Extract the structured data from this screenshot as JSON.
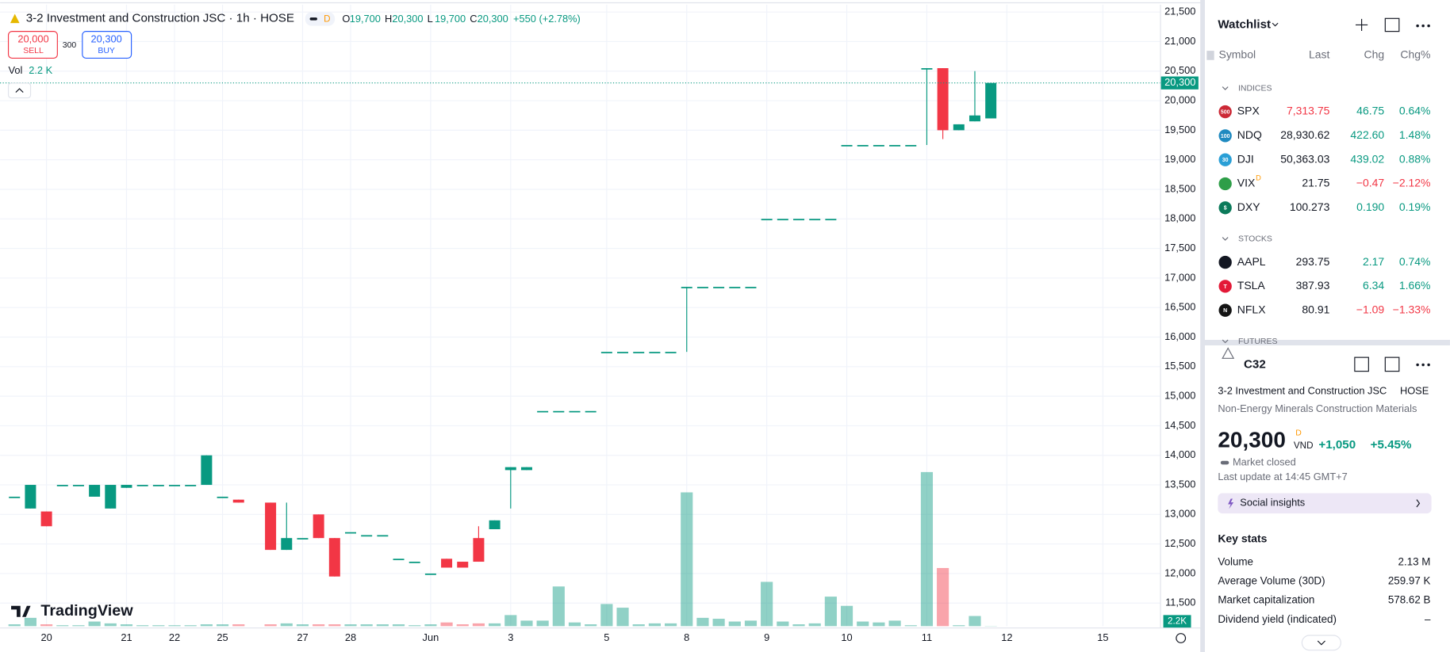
{
  "header": {
    "title": "3-2 Investment and Construction JSC · 1h · HOSE",
    "badge": "D",
    "ohlc": [
      {
        "key": "O",
        "value": "19,700"
      },
      {
        "key": "H",
        "value": "20,300"
      },
      {
        "key": "L",
        "value": "19,700"
      },
      {
        "key": "C",
        "value": "20,300"
      }
    ],
    "change": "+550 (+2.78%)",
    "sell_price": "20,000",
    "sell": "SELL",
    "spread": "300",
    "buy_price": "20,300",
    "buy": "BUY",
    "vol": "Vol",
    "vol_value": "2.2 K"
  },
  "chart_data": {
    "type": "candlestick",
    "up_color": "#089981",
    "down_color": "#f23645",
    "x": [
      0,
      1,
      2,
      3,
      4,
      5,
      6,
      7,
      8,
      9,
      10,
      11,
      12,
      13,
      14,
      16,
      17,
      18,
      19,
      20,
      21,
      22,
      23,
      24,
      25,
      26,
      27,
      28,
      29,
      30,
      31,
      32,
      33,
      34,
      35,
      36,
      37,
      38,
      39,
      40,
      41,
      42,
      43,
      44,
      45,
      46,
      47,
      48,
      49,
      50,
      51,
      52,
      53,
      54,
      55,
      56,
      57,
      58,
      59,
      60,
      61
    ],
    "open": [
      13300,
      13100,
      13050,
      13500,
      13500,
      13300,
      13100,
      13450,
      13500,
      13500,
      13500,
      13500,
      13500,
      13300,
      13250,
      13200,
      12400,
      12600,
      13000,
      12600,
      12700,
      12650,
      12650,
      12250,
      12200,
      12000,
      12250,
      12200,
      12600,
      12750,
      13750,
      13750,
      14750,
      14750,
      14750,
      14750,
      15750,
      15750,
      15750,
      15750,
      15750,
      16850,
      16850,
      16850,
      16850,
      16850,
      18000,
      18000,
      18000,
      18000,
      18000,
      19250,
      19250,
      19250,
      19250,
      19250,
      20550,
      20550,
      19500,
      19650,
      19700
    ],
    "high": [
      13300,
      13500,
      13050,
      13500,
      13500,
      13500,
      13500,
      13500,
      13500,
      13500,
      13500,
      13500,
      14000,
      13300,
      13250,
      13200,
      13200,
      12600,
      13000,
      12600,
      12700,
      12650,
      12650,
      12250,
      12200,
      12000,
      12250,
      12200,
      12800,
      12900,
      13800,
      13800,
      14750,
      14750,
      14750,
      14750,
      15750,
      15750,
      15750,
      15750,
      15750,
      16850,
      16850,
      16850,
      16850,
      16850,
      18000,
      18000,
      18000,
      18000,
      18000,
      19250,
      19250,
      19250,
      19250,
      19250,
      20550,
      20550,
      19600,
      20500,
      20300
    ],
    "low": [
      13300,
      13100,
      12800,
      13500,
      13500,
      13300,
      13100,
      13450,
      13500,
      13500,
      13500,
      13500,
      13500,
      13300,
      13200,
      12400,
      12400,
      12600,
      12600,
      11950,
      12700,
      12650,
      12650,
      12250,
      12200,
      12000,
      12100,
      12100,
      12200,
      12750,
      13100,
      13750,
      14750,
      14750,
      14750,
      14750,
      15750,
      15750,
      15750,
      15750,
      15750,
      15750,
      16850,
      16850,
      16850,
      16850,
      18000,
      18000,
      18000,
      18000,
      18000,
      19250,
      19250,
      19250,
      19250,
      19250,
      19250,
      19350,
      19500,
      19650,
      19700
    ],
    "close": [
      13300,
      13500,
      12800,
      13500,
      13500,
      13500,
      13500,
      13500,
      13500,
      13500,
      13500,
      13500,
      14000,
      13300,
      13200,
      12400,
      12600,
      12600,
      12600,
      11950,
      12700,
      12650,
      12650,
      12250,
      12200,
      12000,
      12100,
      12100,
      12200,
      12900,
      13800,
      13800,
      14750,
      14750,
      14750,
      14750,
      15750,
      15750,
      15750,
      15750,
      15750,
      16850,
      16850,
      16850,
      16850,
      16850,
      18000,
      18000,
      18000,
      18000,
      18000,
      19250,
      19250,
      19250,
      19250,
      19250,
      20550,
      19500,
      19600,
      19750,
      20300
    ],
    "volume": [
      18000,
      81000,
      18000,
      9000,
      9000,
      45000,
      27000,
      18000,
      9000,
      9000,
      9000,
      9000,
      18000,
      18000,
      18000,
      18000,
      27000,
      18000,
      18000,
      18000,
      18000,
      18000,
      18000,
      18000,
      9000,
      18000,
      36000,
      18000,
      27000,
      27000,
      108000,
      54000,
      54000,
      387000,
      36000,
      18000,
      216000,
      180000,
      18000,
      27000,
      27000,
      1305000,
      81000,
      72000,
      45000,
      54000,
      432000,
      45000,
      18000,
      27000,
      288000,
      198000,
      45000,
      36000,
      54000,
      9000,
      1503000,
      567000,
      9000,
      99000,
      2200
    ],
    "xlim": [
      -0.9,
      71.6
    ],
    "xticks": [
      {
        "value": 2,
        "label": "20"
      },
      {
        "value": 7,
        "label": "21"
      },
      {
        "value": 10,
        "label": "22"
      },
      {
        "value": 13,
        "label": "25"
      },
      {
        "value": 18,
        "label": "27"
      },
      {
        "value": 21,
        "label": "28"
      },
      {
        "value": 26,
        "label": "Jun"
      },
      {
        "value": 31,
        "label": "3"
      },
      {
        "value": 37,
        "label": "5"
      },
      {
        "value": 42,
        "label": "8"
      },
      {
        "value": 47,
        "label": "9"
      },
      {
        "value": 52,
        "label": "10"
      },
      {
        "value": 57,
        "label": "11"
      },
      {
        "value": 62,
        "label": "12"
      },
      {
        "value": 68,
        "label": "15"
      }
    ],
    "ylim": [
      11110,
      21625
    ],
    "yticks": [
      {
        "value": 11500,
        "label": "11,500"
      },
      {
        "value": 12000,
        "label": "12,000"
      },
      {
        "value": 12500,
        "label": "12,500"
      },
      {
        "value": 13000,
        "label": "13,000"
      },
      {
        "value": 13500,
        "label": "13,500"
      },
      {
        "value": 14000,
        "label": "14,000"
      },
      {
        "value": 14500,
        "label": "14,500"
      },
      {
        "value": 15000,
        "label": "15,000"
      },
      {
        "value": 15500,
        "label": "15,500"
      },
      {
        "value": 16000,
        "label": "16,000"
      },
      {
        "value": 16500,
        "label": "16,500"
      },
      {
        "value": 17000,
        "label": "17,000"
      },
      {
        "value": 17500,
        "label": "17,500"
      },
      {
        "value": 18000,
        "label": "18,000"
      },
      {
        "value": 18500,
        "label": "18,500"
      },
      {
        "value": 19000,
        "label": "19,000"
      },
      {
        "value": 19500,
        "label": "19,500"
      },
      {
        "value": 20000,
        "label": "20,000"
      },
      {
        "value": 20500,
        "label": "20,500"
      },
      {
        "value": 21000,
        "label": "21,000"
      },
      {
        "value": 21500,
        "label": "21,500"
      }
    ],
    "y2lim": [
      0,
      2000000
    ],
    "last_price": {
      "value": 20300,
      "label": "20,300"
    },
    "volume_axis_label": "2.2K",
    "grid": true,
    "watermark": "TradingView"
  },
  "watchlist": {
    "title": "Watchlist",
    "columns": [
      "Symbol",
      "Last",
      "Chg",
      "Chg%"
    ],
    "sections": [
      {
        "name": "INDICES",
        "rows": [
          {
            "icon": "500",
            "icon_color": "#cc2936",
            "symbol": "SPX",
            "last": "7,313.75",
            "chg": "46.75",
            "chg_pct": "0.64%"
          },
          {
            "icon": "100",
            "icon_color": "#1f8ac0",
            "symbol": "NDQ",
            "last": "28,930.62",
            "chg": "422.60",
            "chg_pct": "1.48%"
          },
          {
            "icon": "30",
            "icon_color": "#2a9fd6",
            "symbol": "DJI",
            "last": "50,363.03",
            "chg": "439.02",
            "chg_pct": "0.88%"
          },
          {
            "icon_color": "#2e9e48",
            "symbol": "VIX",
            "badge": "D",
            "last": "21.75",
            "chg": "−0.47",
            "chg_pct": "−2.12%"
          },
          {
            "icon": "$",
            "icon_color": "#0b7a5a",
            "symbol": "DXY",
            "last": "100.273",
            "chg": "0.190",
            "chg_pct": "0.19%"
          }
        ]
      },
      {
        "name": "STOCKS",
        "rows": [
          {
            "icon_color": "#131722",
            "symbol": "AAPL",
            "last": "293.75",
            "chg": "2.17",
            "chg_pct": "0.74%"
          },
          {
            "icon": "T",
            "icon_color": "#e31937",
            "symbol": "TSLA",
            "last": "387.93",
            "chg": "6.34",
            "chg_pct": "1.66%"
          },
          {
            "icon": "N",
            "icon_color": "#141414",
            "symbol": "NFLX",
            "last": "80.91",
            "chg": "−1.09",
            "chg_pct": "−1.33%"
          }
        ]
      },
      {
        "name": "FUTURES"
      }
    ]
  },
  "details": {
    "symbol": "C32",
    "name": "3-2 Investment and Construction JSC",
    "exchange": "HOSE",
    "sector": "Non-Energy Minerals",
    "industry": "Construction Materials",
    "price": "20,300",
    "price_badge": "D",
    "currency": "VND",
    "change": "+1,050",
    "change_pct": "+5.45%",
    "status": "Market closed",
    "last_update": "Last update at 14:45 GMT+7",
    "insights": "Social insights",
    "key_stats": {
      "title": "Key stats",
      "rows": [
        [
          "Volume",
          "2.13 M"
        ],
        [
          "Average Volume (30D)",
          "259.97 K"
        ],
        [
          "Market capitalization",
          "578.62 B"
        ],
        [
          "Dividend yield (indicated)",
          "–"
        ]
      ]
    }
  }
}
